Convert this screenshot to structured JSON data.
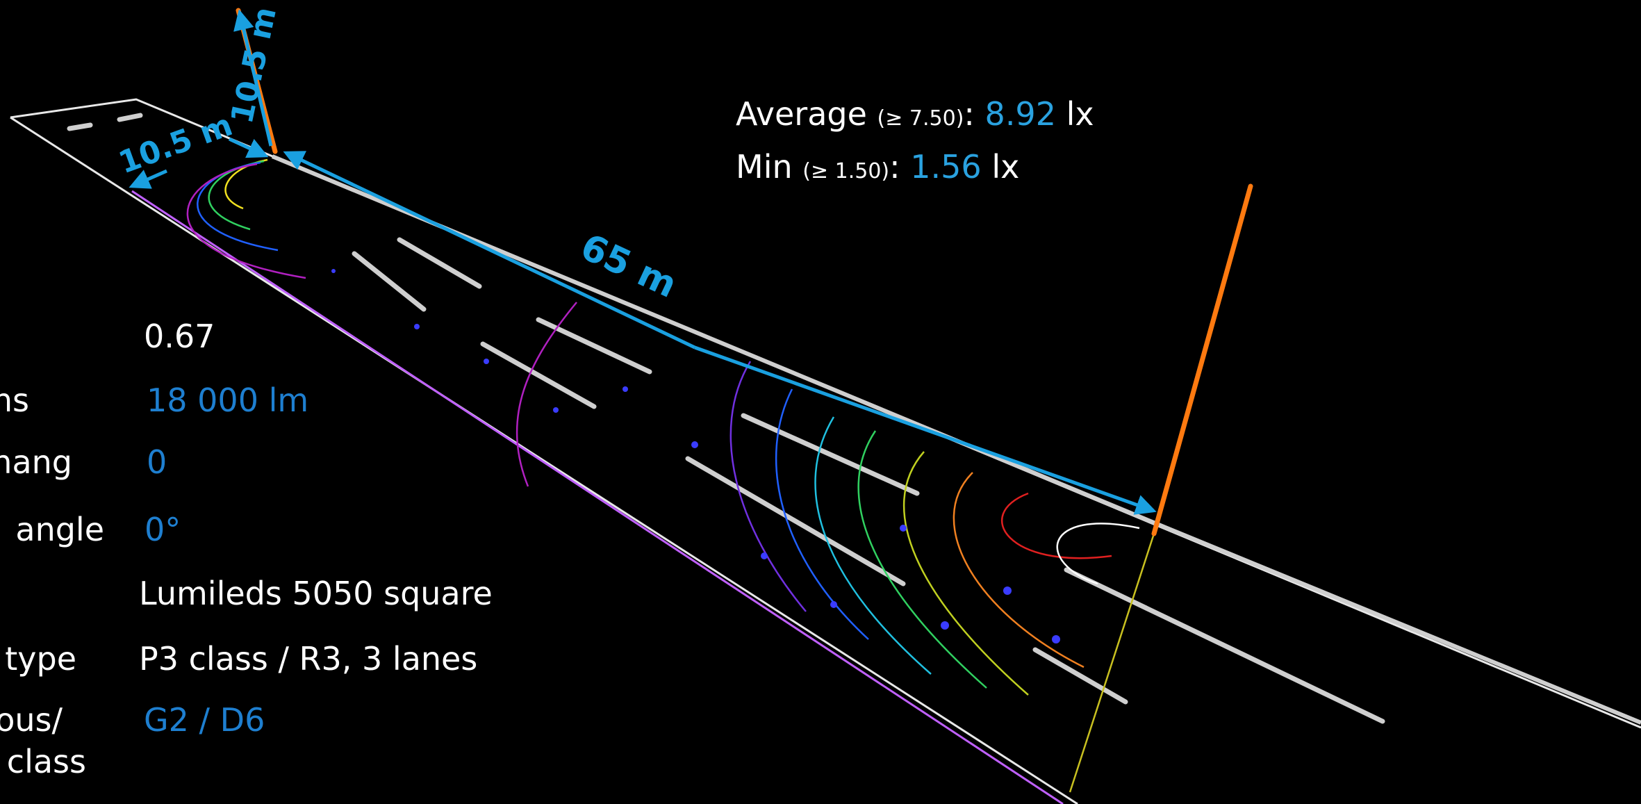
{
  "dimensions": {
    "pole_height": "10.5 m",
    "arm_length": "10.5 m",
    "spacing": "65 m"
  },
  "summary": {
    "average": {
      "label": "Average",
      "requirement": "(≥ 7.50)",
      "separator": ":",
      "value": "8.92",
      "unit": "lx"
    },
    "min": {
      "label": "Min",
      "requirement": "(≥ 1.50)",
      "separator": ":",
      "value": "1.56",
      "unit": "lx"
    }
  },
  "table": {
    "rows": [
      {
        "value": "0.67"
      },
      {
        "label": "ns",
        "value": "18 000 lm"
      },
      {
        "label": "hang",
        "value": "0"
      },
      {
        "label": "angle",
        "value": "0°"
      },
      {
        "value": "Lumileds 5050 square"
      },
      {
        "label": "type",
        "value": "P3 class / R3, 3 lanes"
      },
      {
        "label": [
          "nous/",
          "class"
        ],
        "value": "G2 / D6"
      }
    ]
  }
}
